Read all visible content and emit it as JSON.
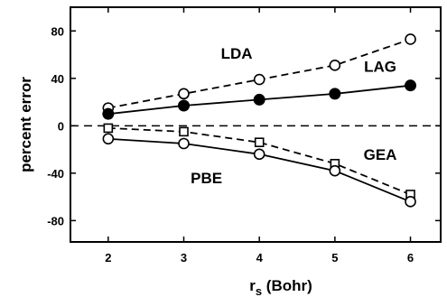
{
  "chart_data": {
    "type": "line",
    "xlabel": "r_s (Bohr)",
    "xlabel_main": "r",
    "xlabel_sub": "s",
    "xlabel_rest": " (Bohr)",
    "ylabel": "percent error",
    "xlim": [
      1.5,
      6.4
    ],
    "ylim": [
      -98,
      100
    ],
    "xticks": [
      2,
      3,
      4,
      5,
      6
    ],
    "yticks": [
      -80,
      -40,
      0,
      40,
      80
    ],
    "zero_line": "dashed",
    "grid": false,
    "x": [
      2,
      3,
      4,
      5,
      6
    ],
    "series": [
      {
        "name": "LDA",
        "values": [
          15,
          27,
          39,
          51,
          73
        ],
        "line": "dashed",
        "marker": "open-circle"
      },
      {
        "name": "LAG",
        "values": [
          10,
          17,
          22,
          27,
          34
        ],
        "line": "solid",
        "marker": "filled-circle"
      },
      {
        "name": "GEA",
        "values": [
          -2,
          -5,
          -14,
          -32,
          -58
        ],
        "line": "dashed",
        "marker": "open-square"
      },
      {
        "name": "PBE",
        "values": [
          -11,
          -15,
          -24,
          -38,
          -64
        ],
        "line": "solid",
        "marker": "open-circle"
      }
    ],
    "annotations": [
      {
        "text": "LDA",
        "x": 3.7,
        "y": 61
      },
      {
        "text": "LAG",
        "x": 5.6,
        "y": 50
      },
      {
        "text": "GEA",
        "x": 5.6,
        "y": -24
      },
      {
        "text": "PBE",
        "x": 3.3,
        "y": -44
      }
    ]
  }
}
